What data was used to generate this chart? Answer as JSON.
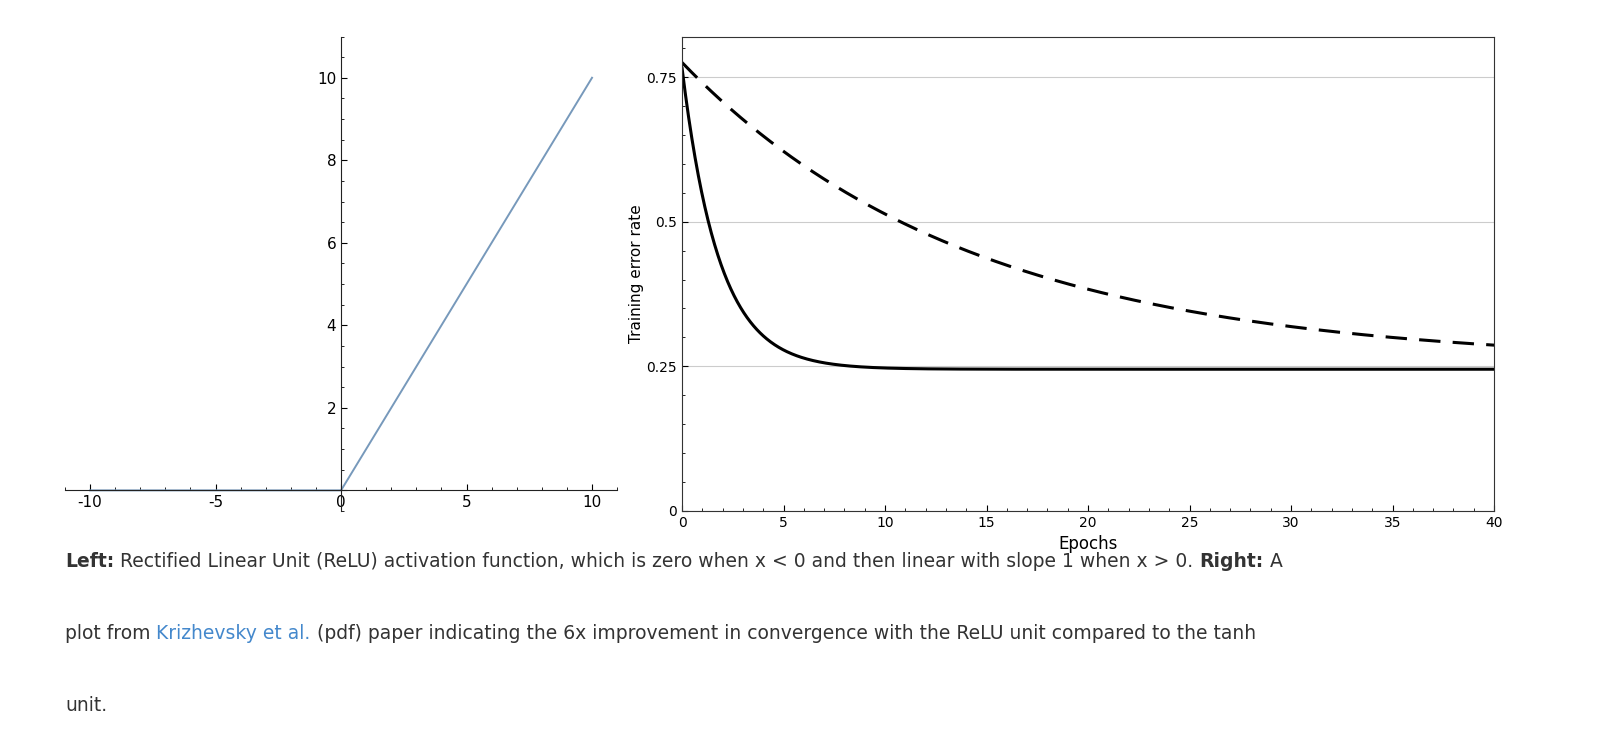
{
  "bg_color": "#ffffff",
  "left_plot": {
    "xlim": [
      -11,
      11
    ],
    "ylim": [
      -0.5,
      11
    ],
    "xticks": [
      -10,
      -5,
      0,
      5,
      10
    ],
    "yticks": [
      0,
      2,
      4,
      6,
      8,
      10
    ],
    "line_color": "#7799bb",
    "line_width": 1.4
  },
  "right_plot": {
    "xlim": [
      0,
      40
    ],
    "ylim": [
      0,
      0.82
    ],
    "xticks": [
      0,
      5,
      10,
      15,
      20,
      25,
      30,
      35,
      40
    ],
    "yticks": [
      0,
      0.25,
      0.5,
      0.75
    ],
    "xlabel": "Epochs",
    "ylabel": "Training error rate",
    "solid_color": "#000000",
    "dashed_color": "#000000",
    "grid_color": "#aaaaaa",
    "grid_alpha": 0.6
  },
  "relu_curve": {
    "decay": 0.55,
    "baseline": 0.245,
    "amplitude": 0.52
  },
  "tanh_curve": {
    "decay": 0.07,
    "baseline": 0.255,
    "amplitude": 0.52
  },
  "caption_fontsize": 13.5,
  "caption_color": "#333333",
  "caption_link_color": "#4488cc"
}
